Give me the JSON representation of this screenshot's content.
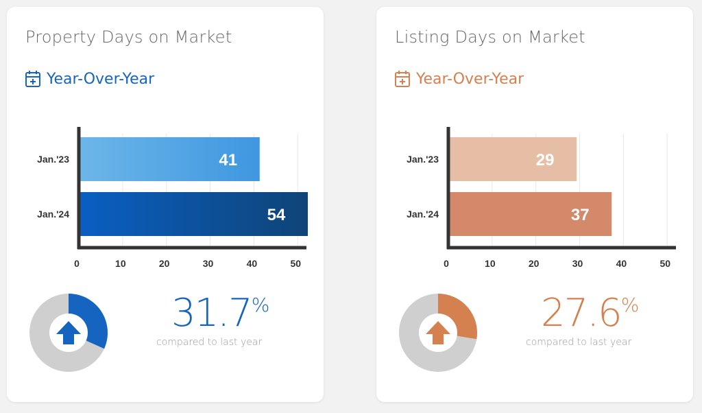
{
  "colors": {
    "blue_accent": "#1565c0",
    "blue_light_start": "#6cb6e8",
    "blue_light_end": "#3f97e0",
    "blue_dark_start": "#0a5fc2",
    "blue_dark_end": "#0f4478",
    "orange_accent": "#d4804f",
    "orange_light": "#e6bea6",
    "orange_dark": "#d4896b",
    "donut_gray": "#cfcfcf",
    "axis": "#333333"
  },
  "cards": [
    {
      "title": "Property Days on Market",
      "subtitle": "Year-Over-Year",
      "subtitle_icon": "calendar-plus-icon",
      "change": {
        "value": "31.7",
        "sign": "%",
        "caption": "compared to last year",
        "fraction": 0.317,
        "direction": "up"
      }
    },
    {
      "title": "Listing Days on Market",
      "subtitle": "Year-Over-Year",
      "subtitle_icon": "calendar-plus-icon",
      "change": {
        "value": "27.6",
        "sign": "%",
        "caption": "compared to last year",
        "fraction": 0.276,
        "direction": "up"
      }
    }
  ],
  "chart_data": [
    {
      "type": "bar",
      "orientation": "horizontal",
      "categories": [
        "Jan.'23",
        "Jan.'24"
      ],
      "values": [
        41,
        54
      ],
      "xlim": [
        0,
        52
      ],
      "xticks": [
        0,
        10,
        20,
        30,
        40,
        50
      ],
      "grid": true
    },
    {
      "type": "bar",
      "orientation": "horizontal",
      "categories": [
        "Jan.'23",
        "Jan.'24"
      ],
      "values": [
        29,
        37
      ],
      "xlim": [
        0,
        52
      ],
      "xticks": [
        0,
        10,
        20,
        30,
        40,
        50
      ],
      "grid": true
    }
  ]
}
